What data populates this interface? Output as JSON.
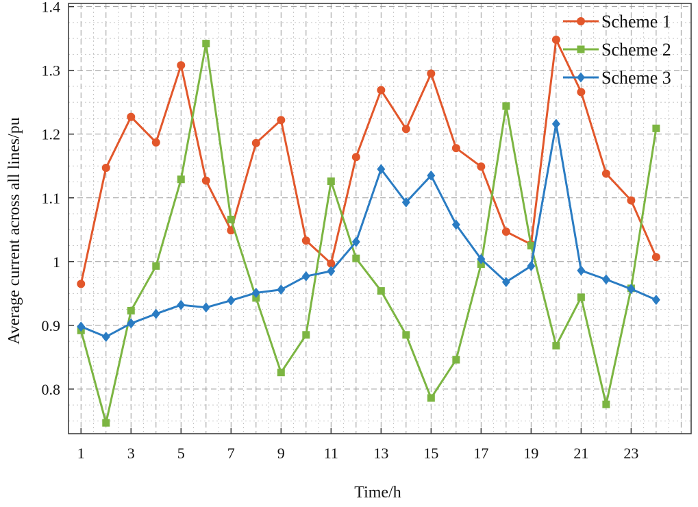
{
  "chart_data": {
    "type": "line",
    "xlabel": "Time/h",
    "ylabel": "Average current across all lines/pu",
    "xlim": [
      0.5,
      25.4
    ],
    "ylim": [
      0.73,
      1.405
    ],
    "x_ticks": [
      1,
      3,
      5,
      7,
      9,
      11,
      13,
      15,
      17,
      19,
      21,
      23
    ],
    "x_tick_labels": [
      "1",
      "3",
      "5",
      "7",
      "9",
      "11",
      "13",
      "15",
      "17",
      "19",
      "21",
      "23"
    ],
    "y_ticks": [
      0.8,
      0.9,
      1.0,
      1.1,
      1.2,
      1.3,
      1.4
    ],
    "y_tick_labels": [
      "0.8",
      "0.9",
      "1",
      "1.1",
      "1.2",
      "1.3",
      "1.4"
    ],
    "grid": true,
    "legend_position": "top-right",
    "x": [
      1,
      2,
      3,
      4,
      5,
      6,
      7,
      8,
      9,
      10,
      11,
      12,
      13,
      14,
      15,
      16,
      17,
      18,
      19,
      20,
      21,
      22,
      23,
      24
    ],
    "series": [
      {
        "name": "Scheme 1",
        "color": "#e2572b",
        "marker": "circle",
        "values": [
          0.965,
          1.147,
          1.227,
          1.187,
          1.308,
          1.127,
          1.049,
          1.186,
          1.222,
          1.033,
          0.997,
          1.164,
          1.269,
          1.208,
          1.295,
          1.178,
          1.149,
          1.047,
          1.027,
          1.348,
          1.266,
          1.138,
          1.096,
          1.007
        ]
      },
      {
        "name": "Scheme 2",
        "color": "#7cb542",
        "marker": "square",
        "values": [
          0.892,
          0.747,
          0.923,
          0.993,
          1.129,
          1.342,
          1.066,
          0.943,
          0.826,
          0.885,
          1.126,
          1.005,
          0.954,
          0.885,
          0.786,
          0.846,
          0.996,
          1.244,
          1.025,
          0.868,
          0.944,
          0.776,
          0.958,
          1.209
        ]
      },
      {
        "name": "Scheme 3",
        "color": "#2a7cc3",
        "marker": "diamond",
        "values": [
          0.898,
          0.882,
          0.903,
          0.918,
          0.932,
          0.928,
          0.939,
          0.951,
          0.956,
          0.977,
          0.985,
          1.031,
          1.145,
          1.093,
          1.135,
          1.058,
          1.004,
          0.968,
          0.993,
          1.216,
          0.986,
          0.972,
          0.957,
          0.94
        ]
      }
    ]
  }
}
